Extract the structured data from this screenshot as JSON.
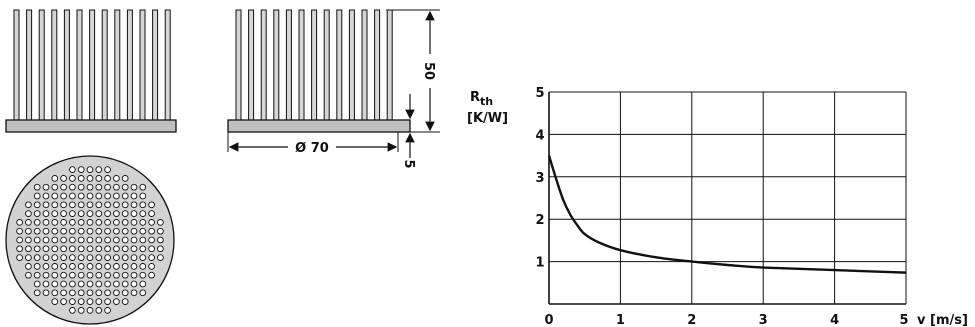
{
  "drawing": {
    "dimensions": {
      "diameter": "Ø 70",
      "height": "50",
      "base": "5"
    }
  },
  "chart_data": {
    "type": "line",
    "ylabel_main": "R",
    "ylabel_sub": "th",
    "ylabel_unit": "[K/W]",
    "xlabel": "v [m/s]",
    "xlim": [
      0,
      5
    ],
    "ylim": [
      0,
      5
    ],
    "grid": true,
    "x_ticks": [
      "0",
      "1",
      "2",
      "3",
      "4"
    ],
    "x_last_tick": "5",
    "y_ticks": [
      "1",
      "2",
      "3",
      "4",
      "5"
    ],
    "series": [
      {
        "x": [
          0,
          0.1,
          0.2,
          0.3,
          0.4,
          0.5,
          0.7,
          1.0,
          1.5,
          2.0,
          2.5,
          3.0,
          4.0,
          5.0
        ],
        "y": [
          3.5,
          2.95,
          2.45,
          2.1,
          1.85,
          1.65,
          1.45,
          1.27,
          1.1,
          1.0,
          0.92,
          0.86,
          0.8,
          0.74
        ]
      }
    ]
  },
  "colors": {
    "ink": "#111111",
    "fin": "#d6d6d6",
    "base": "#bfbfbf",
    "plate": "#d2d2d2"
  }
}
